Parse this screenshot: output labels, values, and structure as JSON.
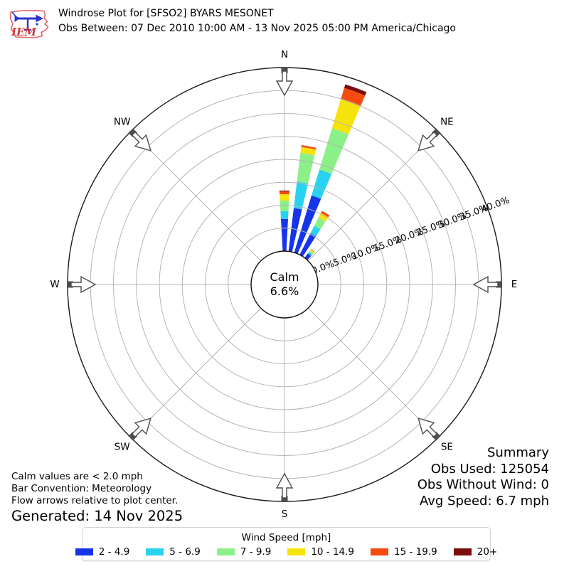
{
  "header": {
    "title": "Windrose Plot for [SFSO2] BYARS MESONET",
    "subtitle": "Obs Between: 07 Dec 2010 10:00 AM - 13 Nov 2025 05:00 PM America/Chicago",
    "logo_text": "IEM"
  },
  "notes": {
    "calm_note": "Calm values are < 2.0 mph",
    "convention_note": "Bar Convention: Meteorology",
    "arrows_note": "Flow arrows relative to plot center.",
    "generated": "Generated: 14 Nov 2025"
  },
  "summary": {
    "title": "Summary",
    "obs_used": "Obs Used: 125054",
    "obs_without_wind": "Obs Without Wind: 0",
    "avg_speed": "Avg Speed: 6.7 mph"
  },
  "chart_data": {
    "type": "windrose",
    "units": "%",
    "title": "Windrose Plot for [SFSO2] BYARS MESONET",
    "calm": {
      "label": "Calm",
      "value_label": "6.6%",
      "percent": 6.6
    },
    "compass_labels": [
      "N",
      "NE",
      "E",
      "SE",
      "S",
      "SW",
      "W",
      "NW"
    ],
    "radial_ticks": [
      {
        "label": "0.0%",
        "value": 0
      },
      {
        "label": "5.0%",
        "value": 5
      },
      {
        "label": "10.0%",
        "value": 10
      },
      {
        "label": "15.0%",
        "value": 15
      },
      {
        "label": "20.0%",
        "value": 20
      },
      {
        "label": "25.0%",
        "value": 25
      },
      {
        "label": "30.0%",
        "value": 30
      },
      {
        "label": "35.0%",
        "value": 35
      },
      {
        "label": "40.0%",
        "value": 40
      }
    ],
    "radial_max": 40,
    "grid": true,
    "legend": {
      "title": "Wind Speed [mph]",
      "position": "bottom"
    },
    "speed_bins": [
      {
        "label": "2 - 4.9",
        "color": "#1634E8"
      },
      {
        "label": "5 - 6.9",
        "color": "#29D3F0"
      },
      {
        "label": "7 - 9.9",
        "color": "#8CF089"
      },
      {
        "label": "10 - 14.9",
        "color": "#F6E30B"
      },
      {
        "label": "15 - 19.9",
        "color": "#F54B0D"
      },
      {
        "label": "20+",
        "color": "#7B0D0D"
      }
    ],
    "bar_width_deg": 6.2,
    "series": [
      {
        "direction_deg": 0,
        "values": [
          7.0,
          1.7,
          2.3,
          1.4,
          0.6,
          0.2
        ]
      },
      {
        "direction_deg": 10,
        "values": [
          9.5,
          5.8,
          6.3,
          1.3,
          0.4,
          0.0
        ]
      },
      {
        "direction_deg": 20,
        "values": [
          13.0,
          5.9,
          9.4,
          6.6,
          2.6,
          0.8
        ]
      },
      {
        "direction_deg": 30,
        "values": [
          5.2,
          1.9,
          2.0,
          1.1,
          0.5,
          0.0
        ]
      },
      {
        "direction_deg": 40,
        "values": [
          1.2,
          0.4,
          0.4,
          0.3,
          0.1,
          0.0
        ]
      }
    ]
  }
}
